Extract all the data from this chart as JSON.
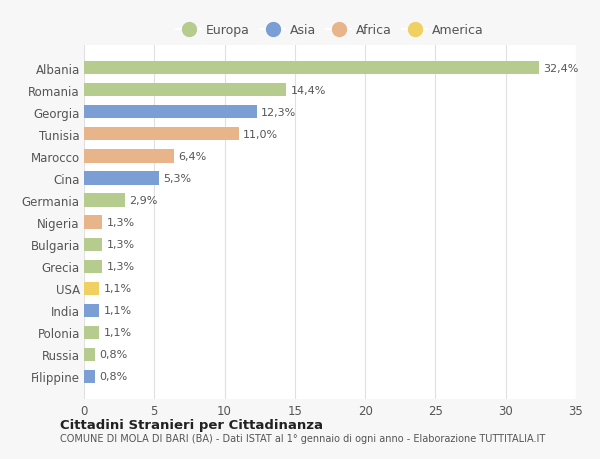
{
  "countries": [
    "Albania",
    "Romania",
    "Georgia",
    "Tunisia",
    "Marocco",
    "Cina",
    "Germania",
    "Nigeria",
    "Bulgaria",
    "Grecia",
    "USA",
    "India",
    "Polonia",
    "Russia",
    "Filippine"
  ],
  "values": [
    32.4,
    14.4,
    12.3,
    11.0,
    6.4,
    5.3,
    2.9,
    1.3,
    1.3,
    1.3,
    1.1,
    1.1,
    1.1,
    0.8,
    0.8
  ],
  "labels": [
    "32,4%",
    "14,4%",
    "12,3%",
    "11,0%",
    "6,4%",
    "5,3%",
    "2,9%",
    "1,3%",
    "1,3%",
    "1,3%",
    "1,1%",
    "1,1%",
    "1,1%",
    "0,8%",
    "0,8%"
  ],
  "continents": [
    "Europa",
    "Europa",
    "Asia",
    "Africa",
    "Africa",
    "Asia",
    "Europa",
    "Africa",
    "Europa",
    "Europa",
    "America",
    "Asia",
    "Europa",
    "Europa",
    "Asia"
  ],
  "colors": {
    "Europa": "#b5cc8e",
    "Asia": "#7b9fd4",
    "Africa": "#e8b48a",
    "America": "#f0d060"
  },
  "xlim": [
    0,
    35
  ],
  "xticks": [
    0,
    5,
    10,
    15,
    20,
    25,
    30,
    35
  ],
  "title1": "Cittadini Stranieri per Cittadinanza",
  "title2": "COMUNE DI MOLA DI BARI (BA) - Dati ISTAT al 1° gennaio di ogni anno - Elaborazione TUTTITALIA.IT",
  "background_color": "#f7f7f7",
  "plot_bg_color": "#ffffff",
  "grid_color": "#e0e0e0",
  "bar_height": 0.6,
  "legend_order": [
    "Europa",
    "Asia",
    "Africa",
    "America"
  ]
}
